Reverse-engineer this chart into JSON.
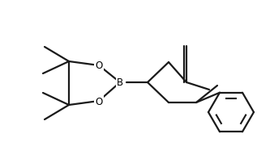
{
  "bg_color": "#ffffff",
  "line_color": "#1a1a1a",
  "line_width": 1.6,
  "figsize": [
    3.17,
    2.03
  ],
  "dpi": 100,
  "xlim": [
    0,
    317
  ],
  "ylim": [
    0,
    203
  ]
}
